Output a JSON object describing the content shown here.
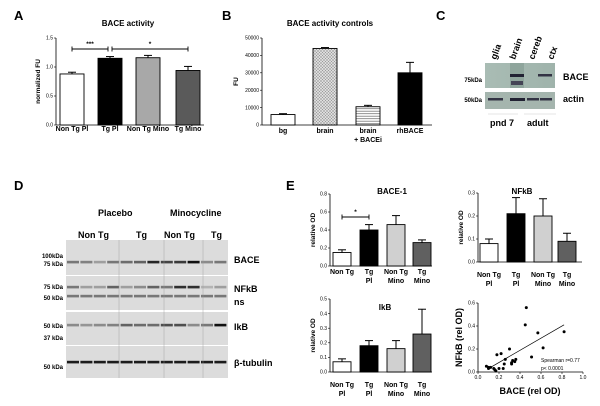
{
  "panel_labels": [
    "A",
    "B",
    "C",
    "D",
    "E"
  ],
  "colors": {
    "non_tg_pl": "#ffffff",
    "tg_pl": "#000000",
    "non_tg_mino": "#a8a8a8",
    "tg_mino": "#5a5a5a",
    "non_tg_mino_E": "#d0d0d0",
    "tg_mino_E": "#606060"
  },
  "chart_data": [
    {
      "id": "A",
      "type": "bar",
      "title": "BACE activity",
      "ylabel": "normalized FU",
      "xlabel": "",
      "categories": [
        "Non Tg Pl",
        "Tg Pl",
        "Non Tg Mino",
        "Tg Mino"
      ],
      "values": [
        0.88,
        1.15,
        1.16,
        0.94
      ],
      "errors": [
        0.03,
        0.03,
        0.04,
        0.07
      ],
      "ylim": [
        0,
        1.5
      ],
      "yticks": [
        "0.0",
        "0.5",
        "1.0",
        "1.5"
      ],
      "significance": [
        {
          "from": "Non Tg Pl",
          "to": "Tg Pl",
          "label": "***"
        },
        {
          "from": "Tg Pl",
          "to": "Tg Mino",
          "label": "*"
        }
      ]
    },
    {
      "id": "B",
      "type": "bar",
      "title": "BACE activity controls",
      "ylabel": "FU",
      "xlabel": "",
      "categories": [
        "bg",
        "brain",
        "brain\n+ BACEi",
        "rhBACE"
      ],
      "values": [
        6000,
        44000,
        10500,
        30000
      ],
      "errors": [
        500,
        500,
        800,
        6000
      ],
      "ylim": [
        0,
        50000
      ],
      "yticks": [
        "0",
        "10000",
        "20000",
        "30000",
        "40000",
        "50000"
      ],
      "fills": [
        "white",
        "crosshatch",
        "horizontal-lines",
        "black"
      ]
    },
    {
      "id": "E1",
      "type": "bar",
      "title": "BACE-1",
      "ylabel": "relative OD",
      "xlabel": "",
      "categories": [
        "Non Tg",
        "Tg\nPl",
        "Non Tg\nMino",
        "Tg\nMino"
      ],
      "values": [
        0.15,
        0.4,
        0.46,
        0.26
      ],
      "errors": [
        0.03,
        0.06,
        0.1,
        0.03
      ],
      "ylim": [
        0,
        0.8
      ],
      "yticks": [
        "0.0",
        "0.2",
        "0.4",
        "0.6",
        "0.8"
      ],
      "significance": [
        {
          "from": "Non Tg",
          "to": "Tg\nPl",
          "label": "*"
        }
      ]
    },
    {
      "id": "E2",
      "type": "bar",
      "title": "NFkB",
      "ylabel": "relative OD",
      "xlabel": "",
      "categories": [
        "Non Tg\nPl",
        "Tg\nPl",
        "Non Tg\nMino",
        "Tg\nMino"
      ],
      "values": [
        0.08,
        0.21,
        0.2,
        0.09
      ],
      "errors": [
        0.02,
        0.07,
        0.075,
        0.035
      ],
      "ylim": [
        0,
        0.3
      ],
      "yticks": [
        "0.0",
        "0.1",
        "0.2",
        "0.3"
      ]
    },
    {
      "id": "E3",
      "type": "bar",
      "title": "IkB",
      "ylabel": "relative OD",
      "xlabel": "",
      "categories": [
        "Non Tg\nPl",
        "Tg\nPl",
        "Non Tg\nMino",
        "Tg\nMino"
      ],
      "values": [
        0.07,
        0.18,
        0.16,
        0.26
      ],
      "errors": [
        0.02,
        0.035,
        0.055,
        0.17
      ],
      "ylim": [
        0,
        0.5
      ],
      "yticks": [
        "0.0",
        "0.1",
        "0.2",
        "0.3",
        "0.4",
        "0.5"
      ]
    },
    {
      "id": "E4",
      "type": "scatter",
      "title": "",
      "xlabel": "BACE (rel OD)",
      "ylabel": "NFkB (rel OD)",
      "xlim": [
        0,
        1.0
      ],
      "ylim": [
        0,
        0.6
      ],
      "xticks": [
        "0.0",
        "0.2",
        "0.4",
        "0.6",
        "0.8",
        "1.0"
      ],
      "yticks": [
        "0.0",
        "0.2",
        "0.4",
        "0.6"
      ],
      "points": [
        [
          0.08,
          0.05
        ],
        [
          0.1,
          0.04
        ],
        [
          0.1,
          0.03
        ],
        [
          0.12,
          0.04
        ],
        [
          0.15,
          0.03
        ],
        [
          0.16,
          0.02
        ],
        [
          0.17,
          0.01
        ],
        [
          0.18,
          0.15
        ],
        [
          0.2,
          0.03
        ],
        [
          0.22,
          0.16
        ],
        [
          0.24,
          0.03
        ],
        [
          0.25,
          0.07
        ],
        [
          0.26,
          0.11
        ],
        [
          0.3,
          0.2
        ],
        [
          0.32,
          0.07
        ],
        [
          0.32,
          0.08
        ],
        [
          0.33,
          0.1
        ],
        [
          0.35,
          0.09
        ],
        [
          0.36,
          0.11
        ],
        [
          0.45,
          0.41
        ],
        [
          0.46,
          0.56
        ],
        [
          0.51,
          0.13
        ],
        [
          0.57,
          0.34
        ],
        [
          0.62,
          0.21
        ],
        [
          0.82,
          0.35
        ]
      ],
      "fit_line": [
        [
          0.1,
          0.03
        ],
        [
          0.82,
          0.41
        ]
      ],
      "annotation": [
        "Spearman r=0.77",
        "p< 0.0001"
      ]
    }
  ],
  "blot_C": {
    "lanes": [
      "glia",
      "brain",
      "cereb",
      "ctx"
    ],
    "markers": [
      "75kDa",
      "50kDa"
    ],
    "bands": [
      "BACE",
      "actin"
    ],
    "groups": [
      "pnd 7",
      "adult"
    ]
  },
  "blot_D": {
    "treatments": [
      "Placebo",
      "Minocycline"
    ],
    "genotypes": [
      "Non Tg",
      "Tg",
      "Non Tg",
      "Tg"
    ],
    "markers": [
      "100kDa",
      "75 kDa",
      "75 kDa",
      "50 kDa",
      "50 kDa",
      "37 kDa",
      "50 kDa"
    ],
    "bands": [
      "BACE",
      "NFkB",
      "ns",
      "IkB",
      "β-tubulin"
    ]
  }
}
